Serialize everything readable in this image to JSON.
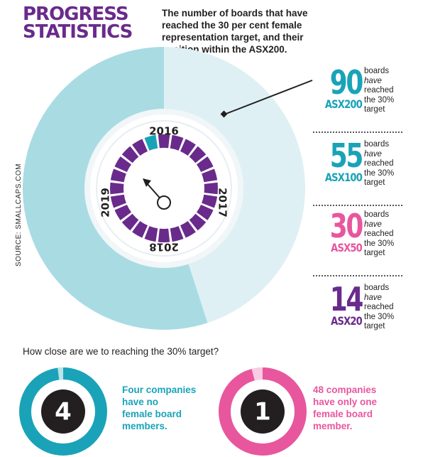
{
  "title": [
    "PROGRESS",
    "STATISTICS"
  ],
  "subtitle": "The number of boards that have reached the 30 per cent female representation target, and their position within the ASX200.",
  "source": "SOURCE: SMALLCAPS.COM",
  "colors": {
    "purple": "#6a2a8c",
    "teal": "#1aa3b8",
    "light_blue": "#a9dbe3",
    "pale_blue": "#dff0f5",
    "pink": "#e8569e",
    "dark": "#231f20"
  },
  "chart_data": [
    {
      "type": "pie",
      "values": [
        90,
        110
      ],
      "max": 200
    },
    {
      "type": "gauge",
      "labels": [
        "2016",
        "2017",
        "2018",
        "2019"
      ],
      "segments": 24,
      "filled": 1,
      "icon": "clock-hand-icon"
    },
    {
      "type": "table",
      "rows": [
        {
          "value": "90",
          "index": "ASX200",
          "text": [
            "boards",
            "have",
            "reached",
            "the 30%",
            "target"
          ],
          "color": "#1aa3b8"
        },
        {
          "value": "55",
          "index": "ASX100",
          "text": [
            "boards",
            "have",
            "reached",
            "the 30%",
            "target"
          ],
          "color": "#1aa3b8"
        },
        {
          "value": "30",
          "index": "ASX50",
          "text": [
            "boards",
            "have",
            "reached",
            "the 30%",
            "target"
          ],
          "color": "#e8569e"
        },
        {
          "value": "14",
          "index": "ASX20",
          "text": [
            "boards",
            "have",
            "reached",
            "the 30%",
            "target"
          ],
          "color": "#6a2a8c"
        }
      ]
    }
  ],
  "question": "How close are we to reaching the 30% target?",
  "bottom": [
    {
      "number": "4",
      "text": [
        "Four companies",
        "have no",
        "female board",
        "members."
      ],
      "color": "#1aa3b8",
      "fill_fraction": 0.98
    },
    {
      "number": "1",
      "text": [
        "48 companies",
        "have only one",
        "female board",
        "member."
      ],
      "color": "#e8569e",
      "fill_fraction": 0.96
    }
  ]
}
